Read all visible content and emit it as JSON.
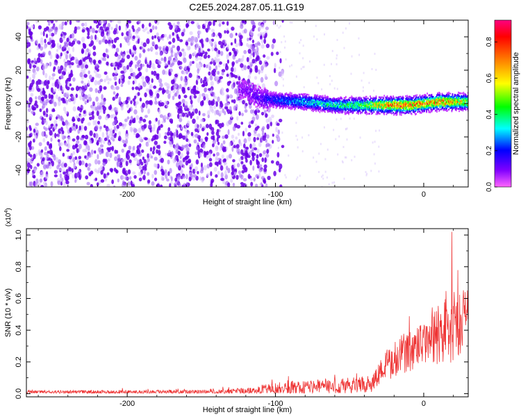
{
  "title": "C2E5.2024.287.05.11.G19",
  "chart_data": [
    {
      "type": "heatmap",
      "xlabel": "Height of straight line (km)",
      "ylabel": "Frequency (Hz)",
      "xlim": [
        -268,
        30
      ],
      "ylim": [
        -50,
        50
      ],
      "xticks": [
        -200,
        -100,
        0
      ],
      "yticks": [
        -40,
        -20,
        0,
        20,
        40
      ],
      "colorbar": {
        "label": "Normalized spectral amplitude",
        "range": [
          0.0,
          0.92
        ],
        "ticks": [
          "0.0",
          "0.2",
          "0.4",
          "0.6",
          "0.8"
        ],
        "colors": [
          "#ff66ff",
          "#8000ff",
          "#0000ff",
          "#00ffff",
          "#00ff00",
          "#ffff00",
          "#ff8000",
          "#ff0000",
          "#ff0080"
        ]
      },
      "noise_region": {
        "x_from": -268,
        "x_to": -105,
        "amplitude": 0.05
      },
      "signal_track": [
        {
          "x": -120,
          "f": 8,
          "amplitude": 0.1
        },
        {
          "x": -110,
          "f": 3,
          "amplitude": 0.15
        },
        {
          "x": -100,
          "f": 2,
          "amplitude": 0.25
        },
        {
          "x": -80,
          "f": 1,
          "amplitude": 0.35
        },
        {
          "x": -60,
          "f": -1,
          "amplitude": 0.4
        },
        {
          "x": -40,
          "f": -1,
          "amplitude": 0.5
        },
        {
          "x": -30,
          "f": -1,
          "amplitude": 0.7
        },
        {
          "x": -20,
          "f": -1,
          "amplitude": 0.8
        },
        {
          "x": -10,
          "f": -1,
          "amplitude": 0.8
        },
        {
          "x": 0,
          "f": 0,
          "amplitude": 0.75
        },
        {
          "x": 10,
          "f": 1,
          "amplitude": 0.8
        },
        {
          "x": 20,
          "f": 1,
          "amplitude": 0.7
        },
        {
          "x": 30,
          "f": 1,
          "amplitude": 0.6
        }
      ]
    },
    {
      "type": "line",
      "xlabel": "Height of straight line (km)",
      "ylabel": "SNR (10 * v/v)",
      "scale_label": "(x10",
      "scale_exp": "4",
      "scale_close": ")",
      "xlim": [
        -268,
        30
      ],
      "ylim": [
        -0.02,
        1.04
      ],
      "xticks": [
        -200,
        -100,
        0
      ],
      "yticks": [
        "0.0",
        "0.2",
        "0.4",
        "0.6",
        "0.8",
        "1.0"
      ],
      "color": "#ee3333",
      "envelope": [
        {
          "x": -268,
          "mean": 0.01,
          "spread": 0.01
        },
        {
          "x": -150,
          "mean": 0.01,
          "spread": 0.015
        },
        {
          "x": -120,
          "mean": 0.015,
          "spread": 0.02
        },
        {
          "x": -100,
          "mean": 0.03,
          "spread": 0.04
        },
        {
          "x": -80,
          "mean": 0.04,
          "spread": 0.05
        },
        {
          "x": -50,
          "mean": 0.05,
          "spread": 0.05
        },
        {
          "x": -35,
          "mean": 0.07,
          "spread": 0.06
        },
        {
          "x": -30,
          "mean": 0.13,
          "spread": 0.08
        },
        {
          "x": -20,
          "mean": 0.22,
          "spread": 0.12
        },
        {
          "x": -10,
          "mean": 0.27,
          "spread": 0.13
        },
        {
          "x": 0,
          "mean": 0.3,
          "spread": 0.14
        },
        {
          "x": 10,
          "mean": 0.38,
          "spread": 0.2
        },
        {
          "x": 15,
          "mean": 0.42,
          "spread": 0.28
        },
        {
          "x": 20,
          "mean": 0.42,
          "spread": 0.22
        },
        {
          "x": 30,
          "mean": 0.48,
          "spread": 0.18
        }
      ],
      "peak": {
        "x": 19,
        "y": 1.02
      }
    }
  ]
}
